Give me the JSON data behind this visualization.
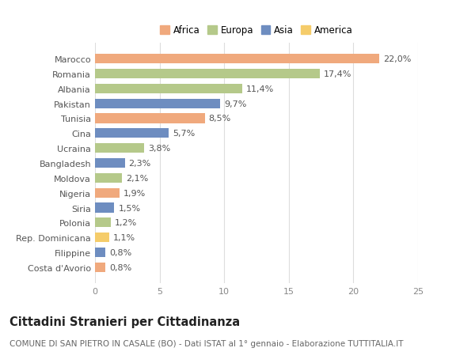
{
  "countries": [
    "Marocco",
    "Romania",
    "Albania",
    "Pakistan",
    "Tunisia",
    "Cina",
    "Ucraina",
    "Bangladesh",
    "Moldova",
    "Nigeria",
    "Siria",
    "Polonia",
    "Rep. Dominicana",
    "Filippine",
    "Costa d'Avorio"
  ],
  "values": [
    22.0,
    17.4,
    11.4,
    9.7,
    8.5,
    5.7,
    3.8,
    2.3,
    2.1,
    1.9,
    1.5,
    1.2,
    1.1,
    0.8,
    0.8
  ],
  "labels": [
    "22,0%",
    "17,4%",
    "11,4%",
    "9,7%",
    "8,5%",
    "5,7%",
    "3,8%",
    "2,3%",
    "2,1%",
    "1,9%",
    "1,5%",
    "1,2%",
    "1,1%",
    "0,8%",
    "0,8%"
  ],
  "continents": [
    "Africa",
    "Europa",
    "Europa",
    "Asia",
    "Africa",
    "Asia",
    "Europa",
    "Asia",
    "Europa",
    "Africa",
    "Asia",
    "Europa",
    "America",
    "Asia",
    "Africa"
  ],
  "colors": {
    "Africa": "#F0A97D",
    "Europa": "#B5C98A",
    "Asia": "#6E8DC0",
    "America": "#F5CC6A"
  },
  "legend_order": [
    "Africa",
    "Europa",
    "Asia",
    "America"
  ],
  "xlim": [
    0,
    25
  ],
  "xticks": [
    0,
    5,
    10,
    15,
    20,
    25
  ],
  "title": "Cittadini Stranieri per Cittadinanza",
  "subtitle": "COMUNE DI SAN PIETRO IN CASALE (BO) - Dati ISTAT al 1° gennaio - Elaborazione TUTTITALIA.IT",
  "bg_color": "#ffffff",
  "grid_color": "#dddddd",
  "bar_height": 0.65,
  "label_fontsize": 8.0,
  "tick_fontsize": 8.0,
  "title_fontsize": 10.5,
  "subtitle_fontsize": 7.5
}
